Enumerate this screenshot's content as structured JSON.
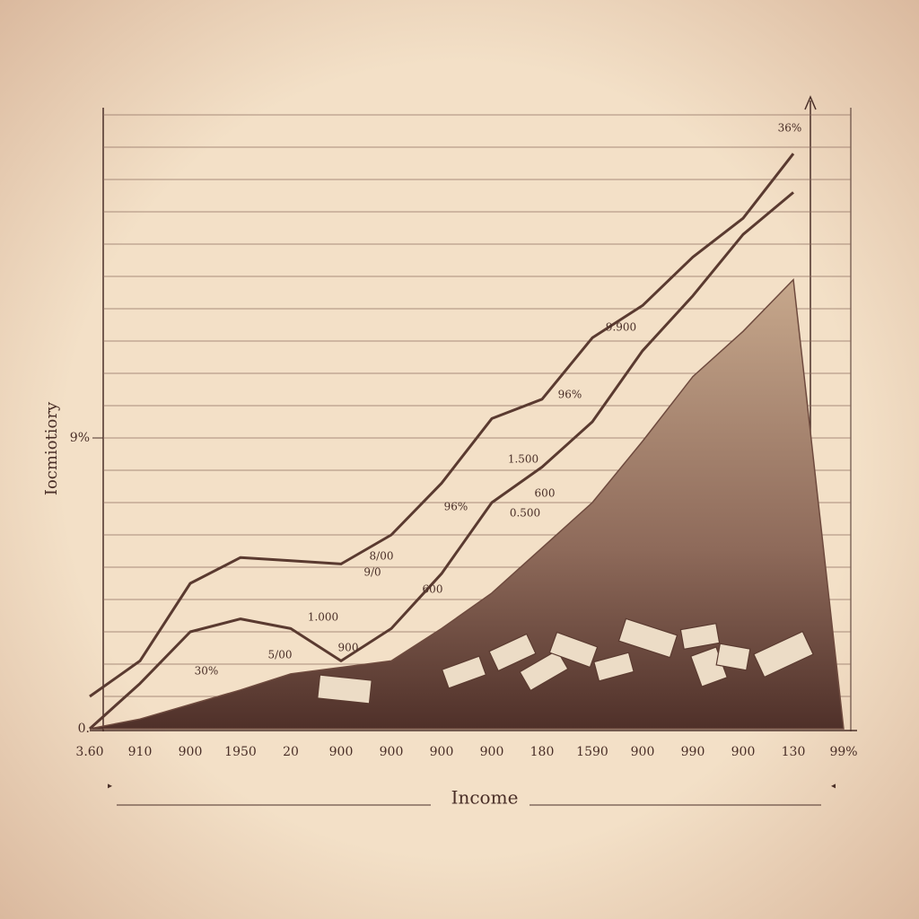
{
  "chart_data": {
    "type": "line",
    "x_label": "Income",
    "y_label": "Iocmiotiory",
    "categories": [
      "3.60",
      "910",
      "900",
      "1950",
      "20",
      "900",
      "900",
      "900",
      "900",
      "180",
      "1590",
      "900",
      "990",
      "900",
      "130",
      "99%"
    ],
    "series": [
      {
        "color": "#5a3a30",
        "values": [
          1.0,
          2.1,
          4.5,
          5.3,
          5.2,
          5.1,
          6.0,
          7.6,
          9.6,
          10.2,
          12.1,
          13.1,
          14.6,
          15.8,
          17.8,
          null
        ]
      },
      {
        "color": "#5a3a30",
        "values": [
          0,
          1.4,
          3.0,
          3.4,
          3.1,
          2.1,
          3.1,
          4.8,
          7.0,
          8.1,
          9.5,
          11.7,
          13.4,
          15.3,
          16.6,
          null
        ]
      },
      {
        "color": "#6e4a3e",
        "fill": "area",
        "values": [
          0,
          0.3,
          0.75,
          1.2,
          1.7,
          1.9,
          2.1,
          3.1,
          4.2,
          5.6,
          7.0,
          8.9,
          10.9,
          12.3,
          13.9,
          0
        ]
      }
    ],
    "ylim": [
      0,
      19
    ],
    "yticks": [
      {
        "value": 0,
        "label": "0."
      },
      {
        "value": 9,
        "label": "9%"
      }
    ],
    "grid_lines": [
      1,
      2,
      3,
      4,
      5,
      6,
      7,
      8,
      9,
      10,
      11,
      12,
      13,
      14,
      15,
      16,
      17,
      18,
      19
    ],
    "annotations": [
      "30%",
      "5/00",
      "1.000",
      "900",
      "8/00",
      "9/0",
      "600",
      "96%",
      "0.500",
      "600",
      "1.500",
      "96%",
      "9.900",
      "36%"
    ]
  }
}
